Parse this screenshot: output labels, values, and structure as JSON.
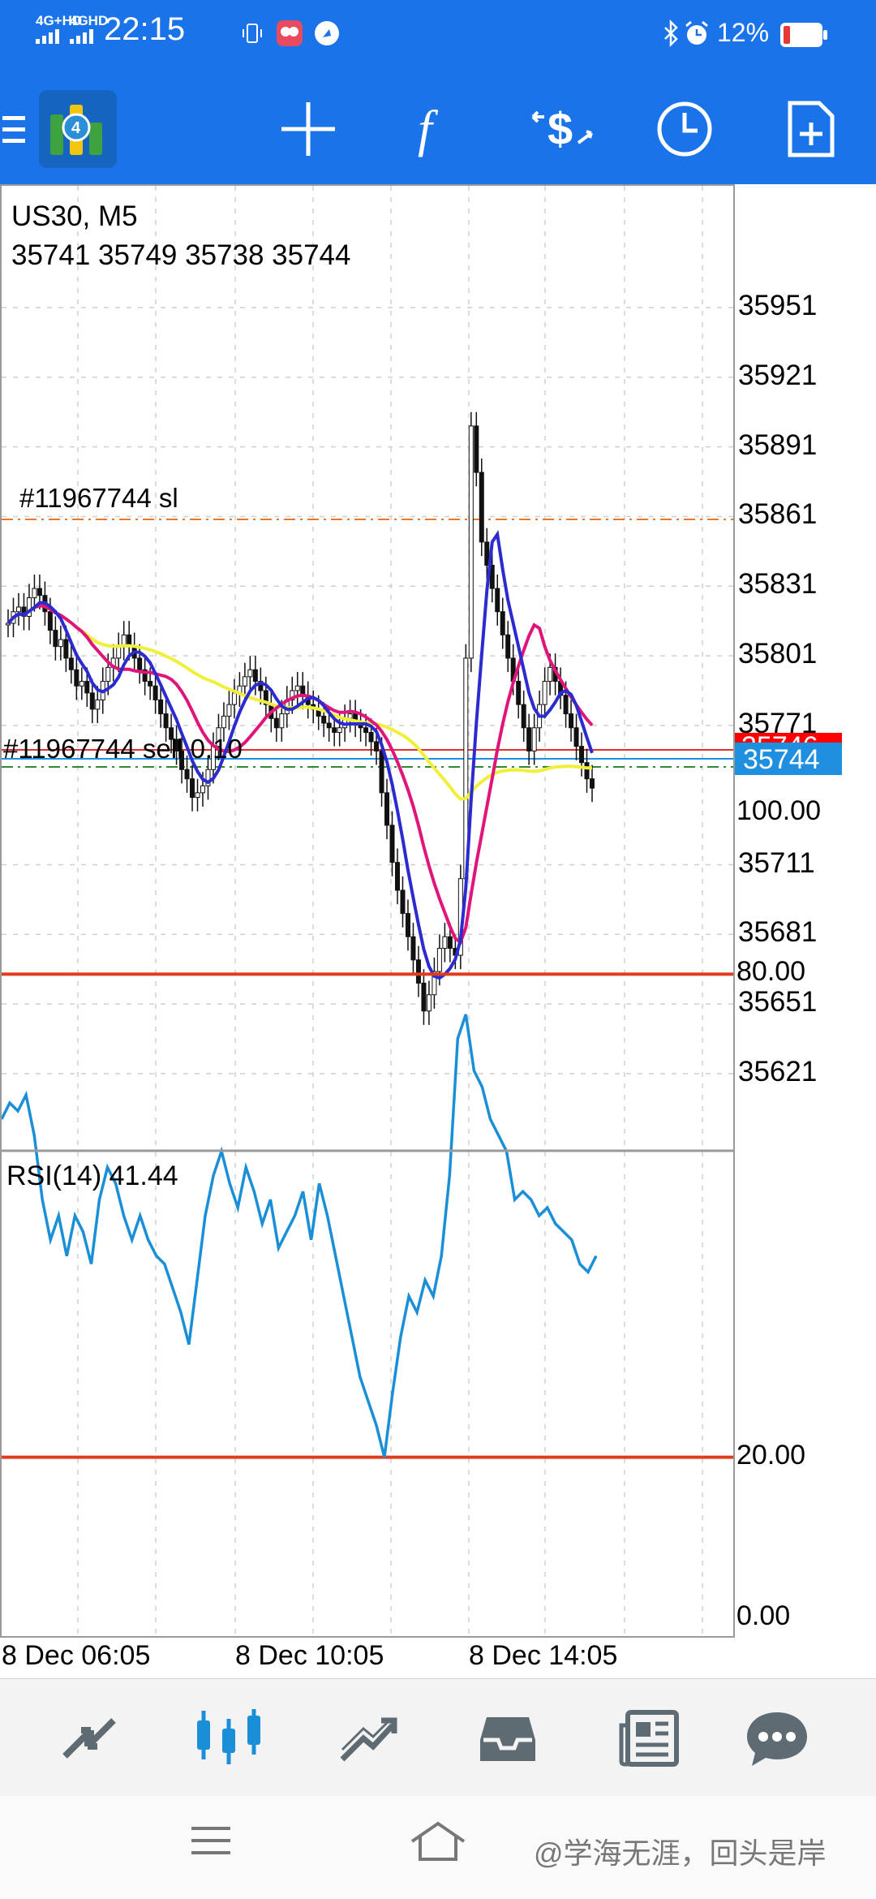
{
  "status_bar": {
    "network_1": "4G+HD",
    "network_2": "4GHD",
    "time": "22:15",
    "battery_percent": "12%"
  },
  "toolbar": {
    "icons": [
      "menu-icon",
      "app-logo",
      "crosshair-icon",
      "function-icon",
      "trade-icon",
      "clock-icon",
      "new-document-icon"
    ]
  },
  "chart": {
    "symbol": "US30, M5",
    "ohlc": "35741 35749 35738 35744",
    "order_sl_label": "#11967744 sl",
    "order_label": "#11967744 sell 0.10",
    "ask_price_partial": "35746",
    "bid_price": "35744",
    "price_axis": [
      "35951",
      "35921",
      "35891",
      "35861",
      "35831",
      "35801",
      "35771",
      "35711",
      "35681",
      "35651",
      "35621"
    ],
    "time_axis": [
      "8 Dec 06:05",
      "8 Dec 10:05",
      "8 Dec 14:05"
    ],
    "colors": {
      "ma_blue": "#2b2bd0",
      "ma_magenta": "#e0157a",
      "ma_yellow": "#f0f03a",
      "sl_line": "#e87830",
      "order_line": "#2e8b2e",
      "ask_line": "#e03030",
      "bid_line": "#1f8fe0",
      "rsi_line": "#1a8fd8",
      "rsi_level": "#e03c1c"
    }
  },
  "rsi": {
    "label": "RSI(14) 41.44",
    "axis": [
      "100.00",
      "80.00",
      "20.00",
      "0.00"
    ]
  },
  "bottom_nav": {
    "items": [
      "quotes-icon",
      "chart-icon",
      "trade-icon",
      "history-icon",
      "news-icon",
      "messages-icon"
    ]
  },
  "system_nav": {
    "watermark": "@学海无涯，回头是岸"
  },
  "chart_data": [
    {
      "type": "candlestick",
      "title": "US30, M5",
      "ylim": [
        35600,
        35970
      ],
      "y_ticks": [
        35951,
        35921,
        35891,
        35861,
        35831,
        35801,
        35771,
        35711,
        35681,
        35651,
        35621
      ],
      "x_tick_labels": [
        "8 Dec 06:05",
        "8 Dec 10:05",
        "8 Dec 14:05"
      ],
      "close_series": [
        35815,
        35820,
        35822,
        35818,
        35826,
        35830,
        35827,
        35820,
        35812,
        35805,
        35808,
        35800,
        35795,
        35788,
        35790,
        35785,
        35778,
        35782,
        35790,
        35796,
        35800,
        35805,
        35810,
        35805,
        35800,
        35795,
        35790,
        35788,
        35782,
        35776,
        35770,
        35765,
        35760,
        35752,
        35748,
        35740,
        35742,
        35745,
        35752,
        35762,
        35770,
        35775,
        35780,
        35785,
        35788,
        35792,
        35795,
        35790,
        35786,
        35780,
        35774,
        35770,
        35776,
        35782,
        35786,
        35788,
        35784,
        35780,
        35778,
        35775,
        35772,
        35770,
        35768,
        35770,
        35774,
        35776,
        35772,
        35770,
        35768,
        35764,
        35760,
        35742,
        35728,
        35712,
        35700,
        35690,
        35680,
        35670,
        35660,
        35648,
        35655,
        35665,
        35675,
        35680,
        35675,
        35672,
        35705,
        35800,
        35900,
        35880,
        35850,
        35840,
        35830,
        35820,
        35810,
        35800,
        35790,
        35780,
        35770,
        35760,
        35770,
        35780,
        35790,
        35796,
        35790,
        35784,
        35776,
        35770,
        35762,
        35755,
        35748,
        35744
      ]
    },
    {
      "type": "line",
      "title": "RSI(14) 41.44",
      "ylim": [
        0,
        100
      ],
      "y_ticks": [
        100,
        80,
        20,
        0
      ],
      "levels": [
        80,
        20
      ],
      "values": [
        62,
        64,
        63,
        65,
        60,
        52,
        47,
        50,
        45,
        50,
        48,
        44,
        52,
        56,
        54,
        50,
        47,
        50,
        47,
        45,
        44,
        41,
        38,
        34,
        42,
        50,
        55,
        58,
        54,
        51,
        56,
        53,
        49,
        52,
        46,
        48,
        50,
        53,
        47,
        54,
        50,
        45,
        40,
        35,
        30,
        27,
        24,
        20,
        28,
        35,
        40,
        38,
        42,
        40,
        45,
        55,
        72,
        75,
        68,
        66,
        62,
        60,
        58,
        52,
        53,
        52,
        50,
        51,
        49,
        48,
        47,
        44,
        43,
        45
      ]
    }
  ]
}
